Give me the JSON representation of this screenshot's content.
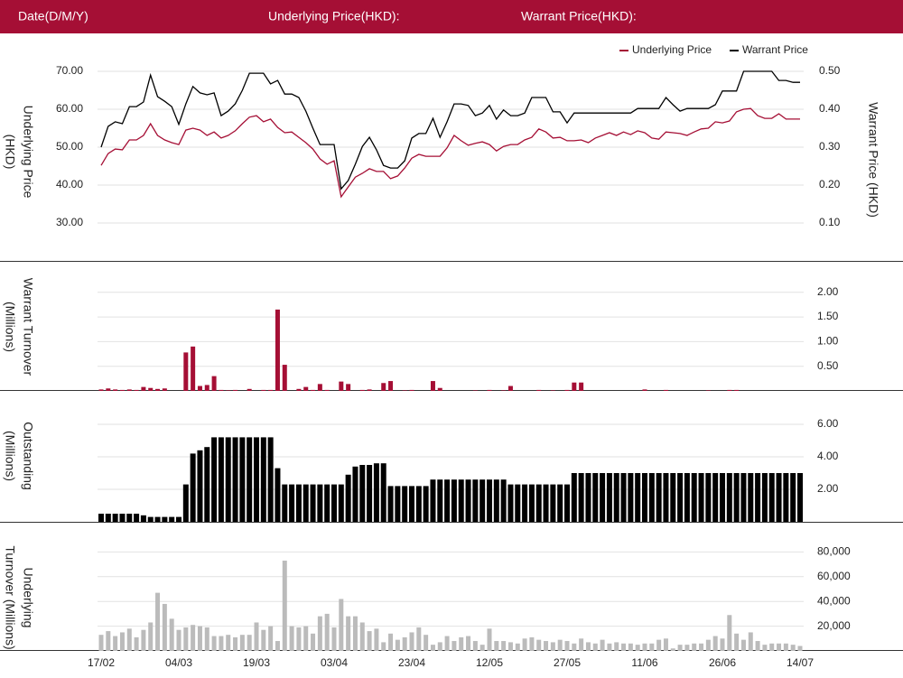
{
  "header": {
    "date": "Date(D/M/Y)",
    "underlying": "Underlying Price(HKD):",
    "warrant": "Warrant Price(HKD):"
  },
  "chart_data": [
    {
      "type": "line",
      "legend": "upper right",
      "ylabel": [
        "Underlying Price",
        "(HKD)"
      ],
      "y2label": "Warrant  Price (HKD)",
      "ylim": [
        20,
        75
      ],
      "yticks": [
        {
          "value": 30,
          "label": "30.00"
        },
        {
          "value": 40,
          "label": "40.00"
        },
        {
          "value": 50,
          "label": "50.00"
        },
        {
          "value": 60,
          "label": "60.00"
        },
        {
          "value": 70,
          "label": "70.00"
        }
      ],
      "y2lim": [
        0,
        0.55
      ],
      "y2ticks": [
        {
          "value": 0.1,
          "label": "0.10"
        },
        {
          "value": 0.2,
          "label": "0.20"
        },
        {
          "value": 0.3,
          "label": "0.30"
        },
        {
          "value": 0.4,
          "label": "0.40"
        },
        {
          "value": 0.5,
          "label": "0.50"
        }
      ],
      "grid": true,
      "series": [
        {
          "name": "Underlying Price",
          "color": "#a50f35",
          "values": [
            45.2,
            48.3,
            49.5,
            49.3,
            51.9,
            51.9,
            53.1,
            56.2,
            53.1,
            51.9,
            51.2,
            50.7,
            54.5,
            55.0,
            54.5,
            53.1,
            54.0,
            52.4,
            53.1,
            54.3,
            56.2,
            57.9,
            58.3,
            56.7,
            57.4,
            55.2,
            53.8,
            54.0,
            52.6,
            51.2,
            49.5,
            46.9,
            45.5,
            46.4,
            36.9,
            39.5,
            42.1,
            43.1,
            44.3,
            43.6,
            43.6,
            41.7,
            42.4,
            44.5,
            47.1,
            48.1,
            47.6,
            47.6,
            47.6,
            49.8,
            53.1,
            51.7,
            50.5,
            51.0,
            51.4,
            50.7,
            49.0,
            50.2,
            50.7,
            50.7,
            51.9,
            52.6,
            54.8,
            54.0,
            52.4,
            52.6,
            51.7,
            51.7,
            51.9,
            51.2,
            52.4,
            53.1,
            53.8,
            53.1,
            54.0,
            53.3,
            54.3,
            53.8,
            52.4,
            52.1,
            54.0,
            53.8,
            53.6,
            53.1,
            54.0,
            54.8,
            55.0,
            56.7,
            56.4,
            56.9,
            59.3,
            60.0,
            60.2,
            58.3,
            57.6,
            57.6,
            58.8,
            57.4,
            57.4,
            57.4
          ]
        },
        {
          "name": "Warrant Price",
          "color": "#000000",
          "axis": "y2",
          "values": [
            0.3,
            0.355,
            0.367,
            0.362,
            0.407,
            0.407,
            0.419,
            0.49,
            0.433,
            0.421,
            0.407,
            0.36,
            0.414,
            0.46,
            0.443,
            0.438,
            0.443,
            0.383,
            0.395,
            0.414,
            0.45,
            0.495,
            0.495,
            0.495,
            0.467,
            0.476,
            0.44,
            0.44,
            0.431,
            0.395,
            0.35,
            0.307,
            0.307,
            0.307,
            0.19,
            0.212,
            0.255,
            0.302,
            0.326,
            0.293,
            0.252,
            0.245,
            0.245,
            0.264,
            0.324,
            0.336,
            0.336,
            0.376,
            0.326,
            0.367,
            0.414,
            0.414,
            0.41,
            0.383,
            0.39,
            0.41,
            0.374,
            0.398,
            0.383,
            0.383,
            0.39,
            0.431,
            0.431,
            0.431,
            0.393,
            0.393,
            0.364,
            0.39,
            0.39,
            0.39,
            0.39,
            0.39,
            0.39,
            0.39,
            0.39,
            0.39,
            0.402,
            0.402,
            0.402,
            0.402,
            0.431,
            0.412,
            0.395,
            0.402,
            0.402,
            0.402,
            0.402,
            0.412,
            0.448,
            0.448,
            0.448,
            0.5,
            0.5,
            0.5,
            0.5,
            0.5,
            0.476,
            0.476,
            0.471,
            0.471
          ]
        }
      ]
    },
    {
      "type": "bar",
      "ylabel": [
        "Warrant  Turnover",
        "(Millions)"
      ],
      "color": "#a50f35",
      "ylim": [
        0,
        2.6
      ],
      "yticks": [
        {
          "value": 0.5,
          "label": "0.50"
        },
        {
          "value": 1,
          "label": "1.00"
        },
        {
          "value": 1.5,
          "label": "1.50"
        },
        {
          "value": 2,
          "label": "2.00"
        }
      ],
      "grid": true,
      "values": [
        0.03,
        0.05,
        0.03,
        0.02,
        0.03,
        0.02,
        0.08,
        0.06,
        0.04,
        0.05,
        0,
        0,
        0.78,
        0.9,
        0.1,
        0.12,
        0.3,
        0.02,
        0.01,
        0.02,
        0,
        0.04,
        0,
        0.02,
        0.02,
        1.65,
        0.53,
        0,
        0.04,
        0.08,
        0.02,
        0.14,
        0.02,
        0,
        0.19,
        0.14,
        0,
        0.02,
        0.03,
        0,
        0.16,
        0.2,
        0,
        0.01,
        0.02,
        0,
        0,
        0.2,
        0.06,
        0,
        0,
        0,
        0,
        0.01,
        0,
        0.02,
        0,
        0.01,
        0.1,
        0,
        0,
        0,
        0.02,
        0,
        0.01,
        0,
        0.02,
        0.17,
        0.17,
        0,
        0,
        0,
        0,
        0,
        0,
        0,
        0,
        0.03,
        0,
        0,
        0.02,
        0,
        0,
        0,
        0,
        0,
        0.01,
        0,
        0,
        0.02,
        0.02,
        0,
        0,
        0,
        0,
        0,
        0,
        0,
        0,
        0
      ]
    },
    {
      "type": "bar",
      "ylabel": [
        "Outstanding",
        "(Millions)"
      ],
      "color": "#000000",
      "ylim": [
        0,
        8
      ],
      "yticks": [
        {
          "value": 2,
          "label": "2.00"
        },
        {
          "value": 4,
          "label": "4.00"
        },
        {
          "value": 6,
          "label": "6.00"
        }
      ],
      "grid": true,
      "values": [
        0.5,
        0.5,
        0.5,
        0.5,
        0.5,
        0.5,
        0.4,
        0.3,
        0.3,
        0.3,
        0.3,
        0.3,
        2.3,
        4.2,
        4.4,
        4.6,
        5.2,
        5.2,
        5.2,
        5.2,
        5.2,
        5.2,
        5.2,
        5.2,
        5.2,
        3.3,
        2.3,
        2.3,
        2.3,
        2.3,
        2.3,
        2.3,
        2.3,
        2.3,
        2.3,
        2.9,
        3.4,
        3.5,
        3.5,
        3.6,
        3.6,
        2.2,
        2.2,
        2.2,
        2.2,
        2.2,
        2.2,
        2.6,
        2.6,
        2.6,
        2.6,
        2.6,
        2.6,
        2.6,
        2.6,
        2.6,
        2.6,
        2.6,
        2.3,
        2.3,
        2.3,
        2.3,
        2.3,
        2.3,
        2.3,
        2.3,
        2.3,
        3,
        3,
        3,
        3,
        3,
        3,
        3,
        3,
        3,
        3,
        3,
        3,
        3,
        3,
        3,
        3,
        3,
        3,
        3,
        3,
        3,
        3,
        3,
        3,
        3,
        3,
        3,
        3,
        3,
        3,
        3,
        3,
        3
      ]
    },
    {
      "type": "bar",
      "ylabel": [
        "Underlying",
        "Turnover (Millions)"
      ],
      "color": "#bbbbbb",
      "ylim": [
        0,
        100000
      ],
      "yticks": [
        {
          "value": 20000,
          "label": "20,000"
        },
        {
          "value": 40000,
          "label": "40,000"
        },
        {
          "value": 60000,
          "label": "60,000"
        },
        {
          "value": 80000,
          "label": "80,000"
        }
      ],
      "grid": true,
      "categories": [
        "17/02",
        null,
        null,
        null,
        null,
        null,
        null,
        null,
        null,
        null,
        null,
        "04/03",
        null,
        null,
        null,
        null,
        null,
        null,
        null,
        null,
        null,
        null,
        "19/03",
        null,
        null,
        null,
        null,
        null,
        null,
        null,
        null,
        null,
        null,
        "03/04",
        null,
        null,
        null,
        null,
        null,
        null,
        null,
        null,
        null,
        null,
        "23/04",
        null,
        null,
        null,
        null,
        null,
        null,
        null,
        null,
        null,
        null,
        "12/05",
        null,
        null,
        null,
        null,
        null,
        null,
        null,
        null,
        null,
        null,
        "27/05",
        null,
        null,
        null,
        null,
        null,
        null,
        null,
        null,
        null,
        null,
        "11/06",
        null,
        null,
        null,
        null,
        null,
        null,
        null,
        null,
        null,
        null,
        "26/06",
        null,
        null,
        null,
        null,
        null,
        null,
        null,
        null,
        null,
        null,
        "14/07"
      ],
      "values": [
        13000,
        16000,
        12000,
        15000,
        18000,
        11000,
        17000,
        23000,
        47000,
        38000,
        26000,
        17000,
        19000,
        21000,
        20000,
        19000,
        12000,
        12000,
        13000,
        11000,
        13000,
        13000,
        23000,
        17000,
        20000,
        8000,
        73000,
        20000,
        19000,
        20000,
        14000,
        28000,
        30000,
        19000,
        42000,
        28000,
        28000,
        23000,
        16000,
        18000,
        7000,
        14000,
        9000,
        11000,
        15000,
        19000,
        13000,
        5000,
        7000,
        12000,
        8000,
        11000,
        12000,
        8000,
        5000,
        18000,
        8000,
        8000,
        7000,
        6000,
        10000,
        11000,
        9000,
        8000,
        7000,
        9000,
        8000,
        6000,
        10000,
        7000,
        6000,
        9000,
        6000,
        7000,
        6000,
        6000,
        5000,
        6000,
        6000,
        9000,
        10000,
        2000,
        5000,
        5000,
        6000,
        6000,
        9000,
        12000,
        10000,
        29000,
        14000,
        9000,
        15000,
        8000,
        5000,
        6000,
        6000,
        6000,
        5000,
        4000
      ]
    }
  ]
}
